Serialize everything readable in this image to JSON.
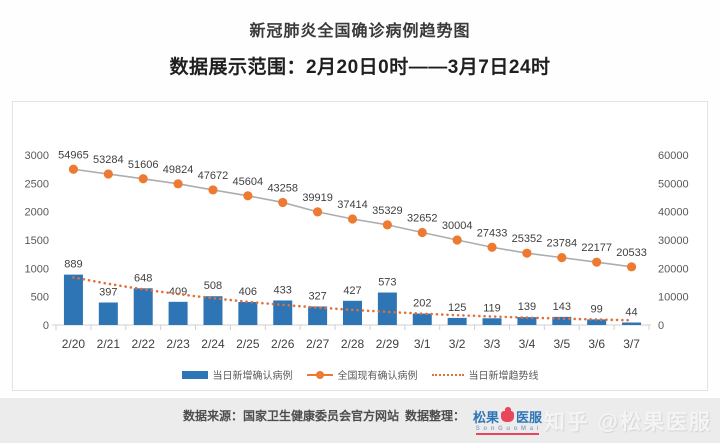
{
  "header": {
    "title": "新冠肺炎全国确诊病例趋势图",
    "subtitle": "数据展示范围：2月20日0时——3月7日24时"
  },
  "chart_data": {
    "type": "bar",
    "title": "新冠肺炎全国确诊病例趋势图",
    "categories": [
      "2/20",
      "2/21",
      "2/22",
      "2/23",
      "2/24",
      "2/25",
      "2/26",
      "2/27",
      "2/28",
      "2/29",
      "3/1",
      "3/2",
      "3/3",
      "3/4",
      "3/5",
      "3/6",
      "3/7"
    ],
    "series": [
      {
        "name": "当日新增确认病例",
        "type": "bar",
        "axis": "left",
        "color": "#2e75b6",
        "values": [
          889,
          397,
          648,
          409,
          508,
          406,
          433,
          327,
          427,
          573,
          202,
          125,
          119,
          139,
          143,
          99,
          44
        ]
      },
      {
        "name": "全国现有确认病例",
        "type": "line",
        "axis": "right",
        "color": "#ed7a30",
        "connector_color": "#adadad",
        "values": [
          54965,
          53284,
          51606,
          49824,
          47672,
          45604,
          43258,
          39919,
          37414,
          35329,
          32652,
          30004,
          27433,
          25352,
          23784,
          22177,
          20533
        ]
      },
      {
        "name": "当日新增趋势线",
        "type": "trend",
        "axis": "left",
        "color": "#e0703a",
        "style": "dotted",
        "fit": "exponential",
        "based_on_series": 0
      }
    ],
    "left_axis": {
      "min": 0,
      "max": 3000,
      "ticks": [
        0,
        500,
        1000,
        1500,
        2000,
        2500,
        3000
      ]
    },
    "right_axis": {
      "min": 0,
      "max": 60000,
      "ticks": [
        0,
        10000,
        20000,
        30000,
        40000,
        50000,
        60000
      ]
    },
    "grid": false,
    "legend_position": "bottom",
    "label_color": "#3f3f3f",
    "axis_text_color": "#595959",
    "axis_line_color": "#d0d0d0"
  },
  "footer": {
    "source": "数据来源：国家卫生健康委员会官方网站",
    "organizer": "数据整理：",
    "logo": {
      "part1": "松果",
      "part2": "医服",
      "subtext": "S o n G u o M a i"
    },
    "watermark": "知乎 @松果医服"
  }
}
